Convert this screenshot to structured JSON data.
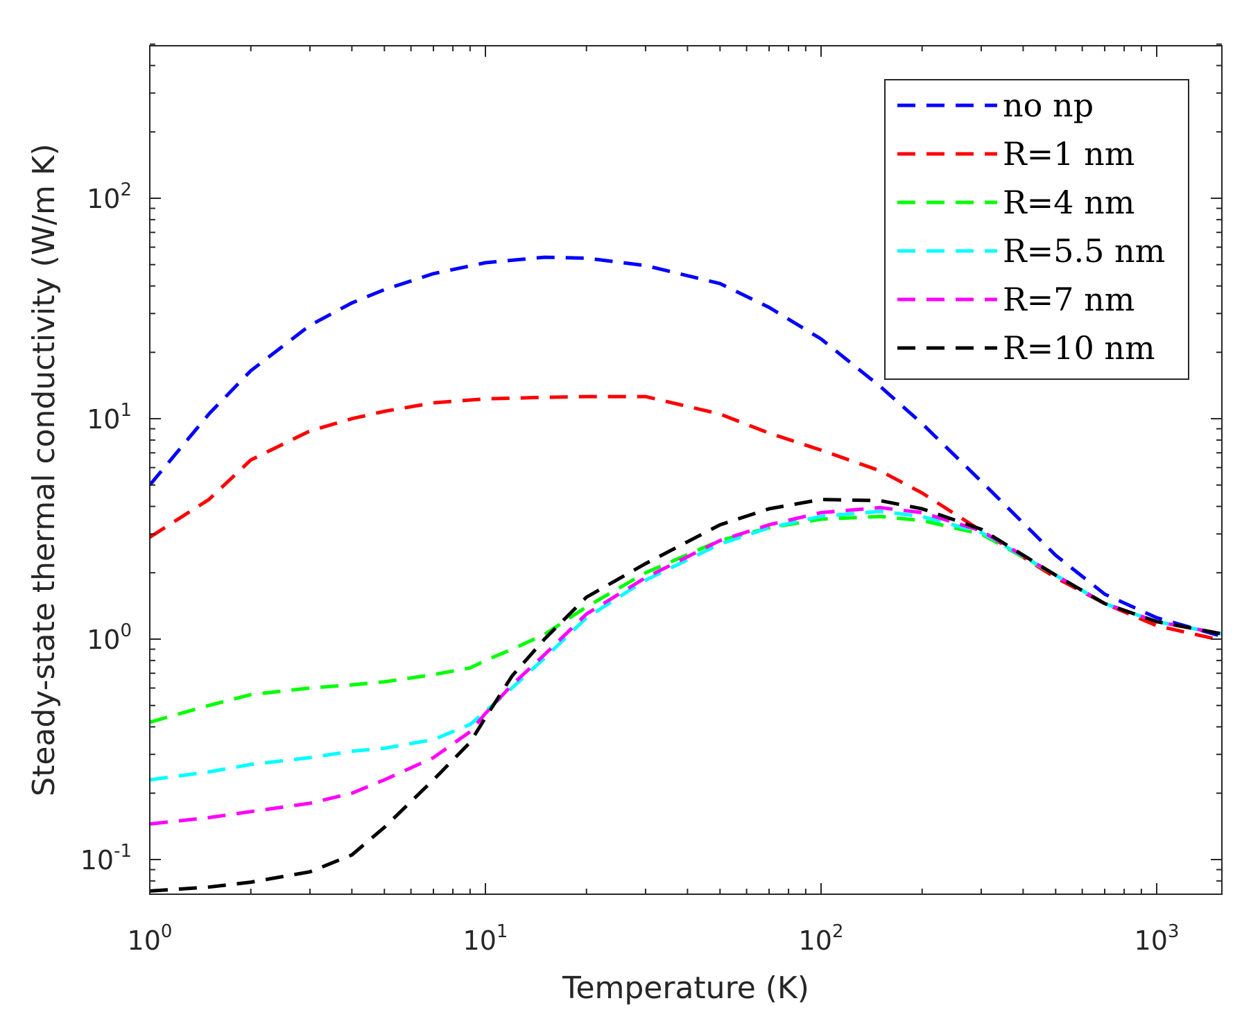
{
  "chart_data": {
    "type": "line",
    "title": "",
    "xlabel": "Temperature (K)",
    "ylabel": "Steady-state thermal conductivity (W/m K)",
    "xscale": "log",
    "yscale": "log",
    "xlim": [
      1,
      1600
    ],
    "ylim": [
      0.072,
      500
    ],
    "x_ticks": [
      {
        "base": "10",
        "exp": "0",
        "value": 1
      },
      {
        "base": "10",
        "exp": "1",
        "value": 10
      },
      {
        "base": "10",
        "exp": "2",
        "value": 100
      },
      {
        "base": "10",
        "exp": "3",
        "value": 1000
      }
    ],
    "y_ticks": [
      {
        "base": "10",
        "exp": "-1",
        "value": 0.1
      },
      {
        "base": "10",
        "exp": "0",
        "value": 1
      },
      {
        "base": "10",
        "exp": "1",
        "value": 10
      },
      {
        "base": "10",
        "exp": "2",
        "value": 100
      }
    ],
    "line_style": "dashed",
    "legend_position": "top-right",
    "series": [
      {
        "name": "no np",
        "color": "#0000ff",
        "x": [
          1,
          1.5,
          2,
          3,
          4,
          5,
          7,
          10,
          15,
          20,
          30,
          50,
          70,
          100,
          150,
          200,
          300,
          500,
          700,
          1000,
          1600
        ],
        "y": [
          5.0,
          10.5,
          16.5,
          26.5,
          33.5,
          38.5,
          45.5,
          51,
          54,
          53.5,
          49.5,
          41,
          32,
          23,
          14,
          9.5,
          5.2,
          2.4,
          1.6,
          1.25,
          1.02
        ]
      },
      {
        "name": "R=1 nm",
        "color": "#ff0000",
        "x": [
          1,
          1.5,
          2,
          3,
          4,
          5,
          7,
          10,
          15,
          20,
          30,
          50,
          70,
          100,
          150,
          200,
          300,
          500,
          700,
          1000,
          1600
        ],
        "y": [
          2.9,
          4.3,
          6.5,
          8.8,
          10.0,
          10.8,
          11.8,
          12.3,
          12.5,
          12.6,
          12.6,
          10.5,
          8.6,
          7.2,
          5.8,
          4.6,
          3.1,
          1.9,
          1.45,
          1.15,
          0.98
        ]
      },
      {
        "name": "R=4 nm",
        "color": "#00ff00",
        "x": [
          1,
          1.5,
          2,
          3,
          4,
          5,
          7,
          9,
          10,
          12,
          15,
          20,
          30,
          50,
          70,
          100,
          150,
          200,
          300,
          500,
          700,
          1000,
          1600
        ],
        "y": [
          0.42,
          0.5,
          0.56,
          0.6,
          0.62,
          0.64,
          0.69,
          0.74,
          0.8,
          0.9,
          1.05,
          1.4,
          2.0,
          2.8,
          3.2,
          3.5,
          3.6,
          3.45,
          3.0,
          1.95,
          1.45,
          1.2,
          1.05
        ]
      },
      {
        "name": "R=5.5 nm",
        "color": "#00ffff",
        "x": [
          1,
          1.5,
          2,
          3,
          4,
          5,
          7,
          9,
          10,
          12,
          15,
          20,
          30,
          50,
          70,
          100,
          150,
          200,
          300,
          500,
          700,
          1000,
          1600
        ],
        "y": [
          0.23,
          0.25,
          0.27,
          0.29,
          0.31,
          0.32,
          0.35,
          0.41,
          0.47,
          0.6,
          0.82,
          1.25,
          1.85,
          2.7,
          3.2,
          3.6,
          3.8,
          3.6,
          3.05,
          1.95,
          1.45,
          1.2,
          1.05
        ]
      },
      {
        "name": "R=7 nm",
        "color": "#ff00ff",
        "x": [
          1,
          1.5,
          2,
          3,
          4,
          5,
          7,
          9,
          10,
          12,
          15,
          20,
          30,
          50,
          70,
          100,
          150,
          200,
          300,
          500,
          700,
          1000,
          1600
        ],
        "y": [
          0.145,
          0.155,
          0.165,
          0.18,
          0.2,
          0.23,
          0.29,
          0.38,
          0.46,
          0.62,
          0.85,
          1.3,
          1.9,
          2.8,
          3.3,
          3.75,
          3.95,
          3.75,
          3.1,
          1.95,
          1.45,
          1.2,
          1.05
        ]
      },
      {
        "name": "R=10 nm",
        "color": "#000000",
        "x": [
          1,
          1.5,
          2,
          3,
          4,
          5,
          7,
          9,
          10,
          12,
          15,
          20,
          30,
          50,
          70,
          100,
          150,
          200,
          300,
          500,
          700,
          1000,
          1600
        ],
        "y": [
          0.072,
          0.075,
          0.079,
          0.088,
          0.105,
          0.14,
          0.23,
          0.34,
          0.44,
          0.68,
          1.0,
          1.55,
          2.2,
          3.3,
          3.9,
          4.3,
          4.25,
          3.9,
          3.15,
          1.95,
          1.45,
          1.2,
          1.05
        ]
      }
    ]
  }
}
